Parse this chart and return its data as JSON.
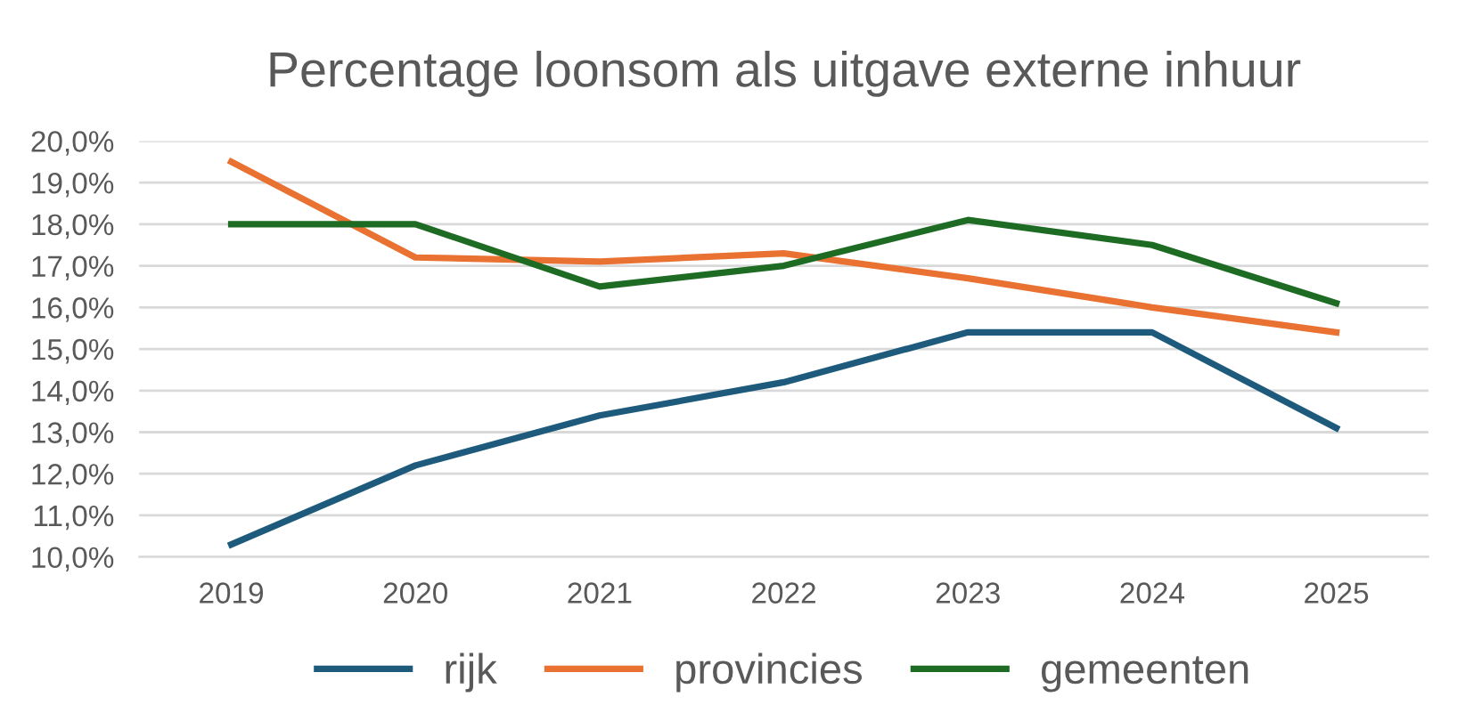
{
  "chart_data": {
    "type": "line",
    "title": "Percentage loonsom als uitgave externe inhuur",
    "categories": [
      "2019",
      "2020",
      "2021",
      "2022",
      "2023",
      "2024",
      "2025"
    ],
    "series": [
      {
        "name": "rijk",
        "color": "#1d5a7c",
        "values": [
          10.3,
          12.2,
          13.4,
          14.2,
          15.4,
          15.4,
          13.1
        ]
      },
      {
        "name": "provincies",
        "color": "#e97132",
        "values": [
          19.5,
          17.2,
          17.1,
          17.3,
          16.7,
          16.0,
          15.4
        ]
      },
      {
        "name": "gemeenten",
        "color": "#1e6b24",
        "values": [
          18.0,
          18.0,
          16.5,
          17.0,
          18.1,
          17.5,
          16.1
        ]
      }
    ],
    "ylim": [
      10,
      20
    ],
    "yticks": [
      {
        "value": 10,
        "label": "10,0%"
      },
      {
        "value": 11,
        "label": "11,0%"
      },
      {
        "value": 12,
        "label": "12,0%"
      },
      {
        "value": 13,
        "label": "13,0%"
      },
      {
        "value": 14,
        "label": "14,0%"
      },
      {
        "value": 15,
        "label": "15,0%"
      },
      {
        "value": 16,
        "label": "16,0%"
      },
      {
        "value": 17,
        "label": "17,0%"
      },
      {
        "value": 18,
        "label": "18,0%"
      },
      {
        "value": 19,
        "label": "19,0%"
      },
      {
        "value": 20,
        "label": "20,0%"
      }
    ],
    "grid": "y",
    "legend": "bottom",
    "marker": "none",
    "line_style": "solid"
  }
}
